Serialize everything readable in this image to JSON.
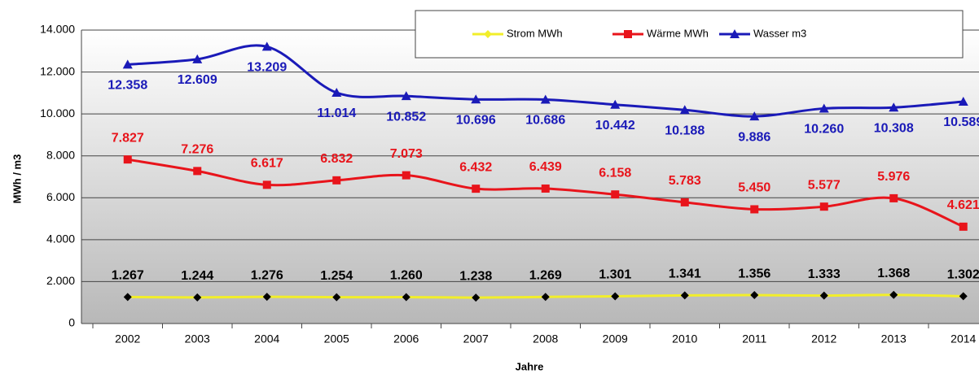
{
  "chart_data": {
    "type": "line",
    "x_label": "Jahre",
    "y_label": "MWh / m3",
    "categories": [
      "2002",
      "2003",
      "2004",
      "2005",
      "2006",
      "2007",
      "2008",
      "2009",
      "2010",
      "2011",
      "2012",
      "2013",
      "2014"
    ],
    "series": [
      {
        "name": "Strom MWh",
        "color": "#f2ee2a",
        "marker": "diamond",
        "marker_color": "#000000",
        "label_color": "#000000",
        "values": [
          1267,
          1244,
          1276,
          1254,
          1260,
          1238,
          1269,
          1301,
          1341,
          1356,
          1333,
          1368,
          1302
        ],
        "value_labels": [
          "1.267",
          "1.244",
          "1.276",
          "1.254",
          "1.260",
          "1.238",
          "1.269",
          "1.301",
          "1.341",
          "1.356",
          "1.333",
          "1.368",
          "1.302"
        ]
      },
      {
        "name": "Wärme MWh",
        "color": "#e8141b",
        "marker": "square",
        "marker_color": "#e8141b",
        "label_color": "#e8141b",
        "values": [
          7827,
          7276,
          6617,
          6832,
          7073,
          6432,
          6439,
          6158,
          5783,
          5450,
          5577,
          5976,
          4621
        ],
        "value_labels": [
          "7.827",
          "7.276",
          "6.617",
          "6.832",
          "7.073",
          "6.432",
          "6.439",
          "6.158",
          "5.783",
          "5.450",
          "5.577",
          "5.976",
          "4.621"
        ]
      },
      {
        "name": "Wasser m3",
        "color": "#1a1ab8",
        "marker": "triangle",
        "marker_color": "#1a1ab8",
        "label_color": "#1a1ab8",
        "values": [
          12358,
          12609,
          13209,
          11014,
          10852,
          10696,
          10686,
          10442,
          10188,
          9886,
          10260,
          10308,
          10589
        ],
        "value_labels": [
          "12.358",
          "12.609",
          "13.209",
          "11.014",
          "10.852",
          "10.696",
          "10.686",
          "10.442",
          "10.188",
          "9.886",
          "10.260",
          "10.308",
          "10.589"
        ]
      }
    ],
    "ylim": [
      0,
      14000
    ],
    "yticks": [
      0,
      {
        "value": 2000,
        "label": "2.000"
      },
      {
        "value": 4000,
        "label": "4.000"
      },
      {
        "value": 6000,
        "label": "6.000"
      },
      {
        "value": 8000,
        "label": "8.000"
      },
      {
        "value": 10000,
        "label": "10.000"
      },
      {
        "value": 12000,
        "label": "12.000"
      },
      {
        "value": 14000,
        "label": "14.000"
      }
    ],
    "grid": true,
    "legend": "top-right"
  }
}
